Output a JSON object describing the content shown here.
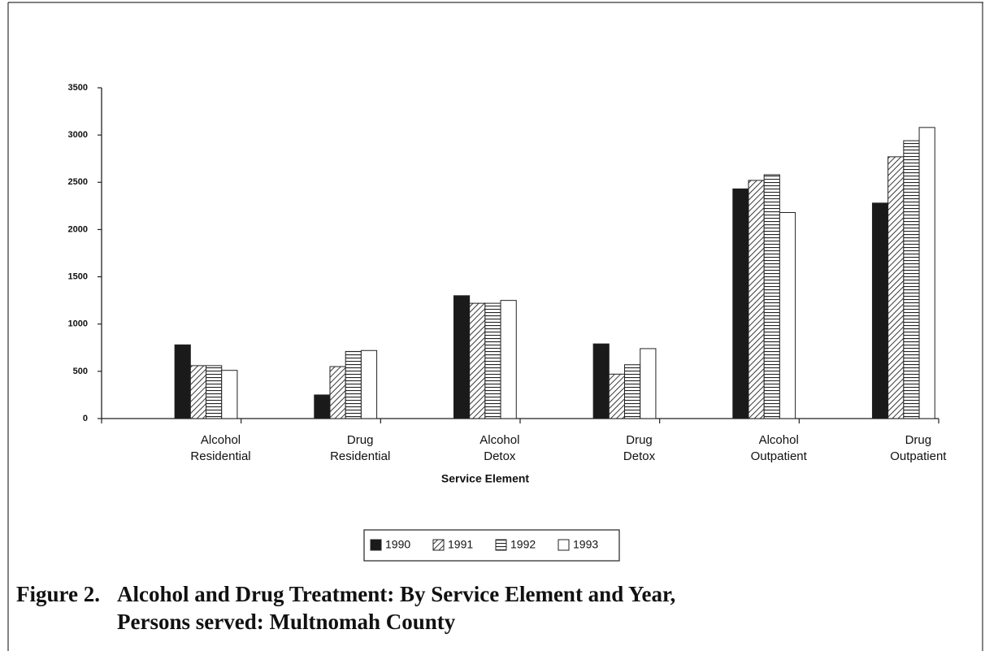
{
  "chart_data": {
    "type": "bar",
    "categories": [
      "Alcohol Residential",
      "Drug Residential",
      "Alcohol Detox",
      "Drug Detox",
      "Alcohol Outpatient",
      "Drug Outpatient"
    ],
    "series": [
      {
        "name": "1990",
        "color": "#1a1a1a",
        "pattern": "solid",
        "values": [
          780,
          250,
          1300,
          790,
          2430,
          2280
        ]
      },
      {
        "name": "1991",
        "color": "#1a1a1a",
        "pattern": "diagonal",
        "values": [
          560,
          550,
          1220,
          470,
          2520,
          2770
        ]
      },
      {
        "name": "1992",
        "color": "#1a1a1a",
        "pattern": "horizontal",
        "values": [
          560,
          710,
          1220,
          570,
          2580,
          2940
        ]
      },
      {
        "name": "1993",
        "color": "#1a1a1a",
        "pattern": "none",
        "values": [
          510,
          720,
          1250,
          740,
          2180,
          3080
        ]
      }
    ],
    "x_label": "Service Element",
    "ylim": [
      0,
      3500
    ],
    "yticks": [
      0,
      500,
      1000,
      1500,
      2000,
      2500,
      3000,
      3500
    ],
    "figure_label": "Figure 2.",
    "title": "Alcohol and Drug Treatment: By Service Element and Year, Persons served: Multnomah County"
  }
}
